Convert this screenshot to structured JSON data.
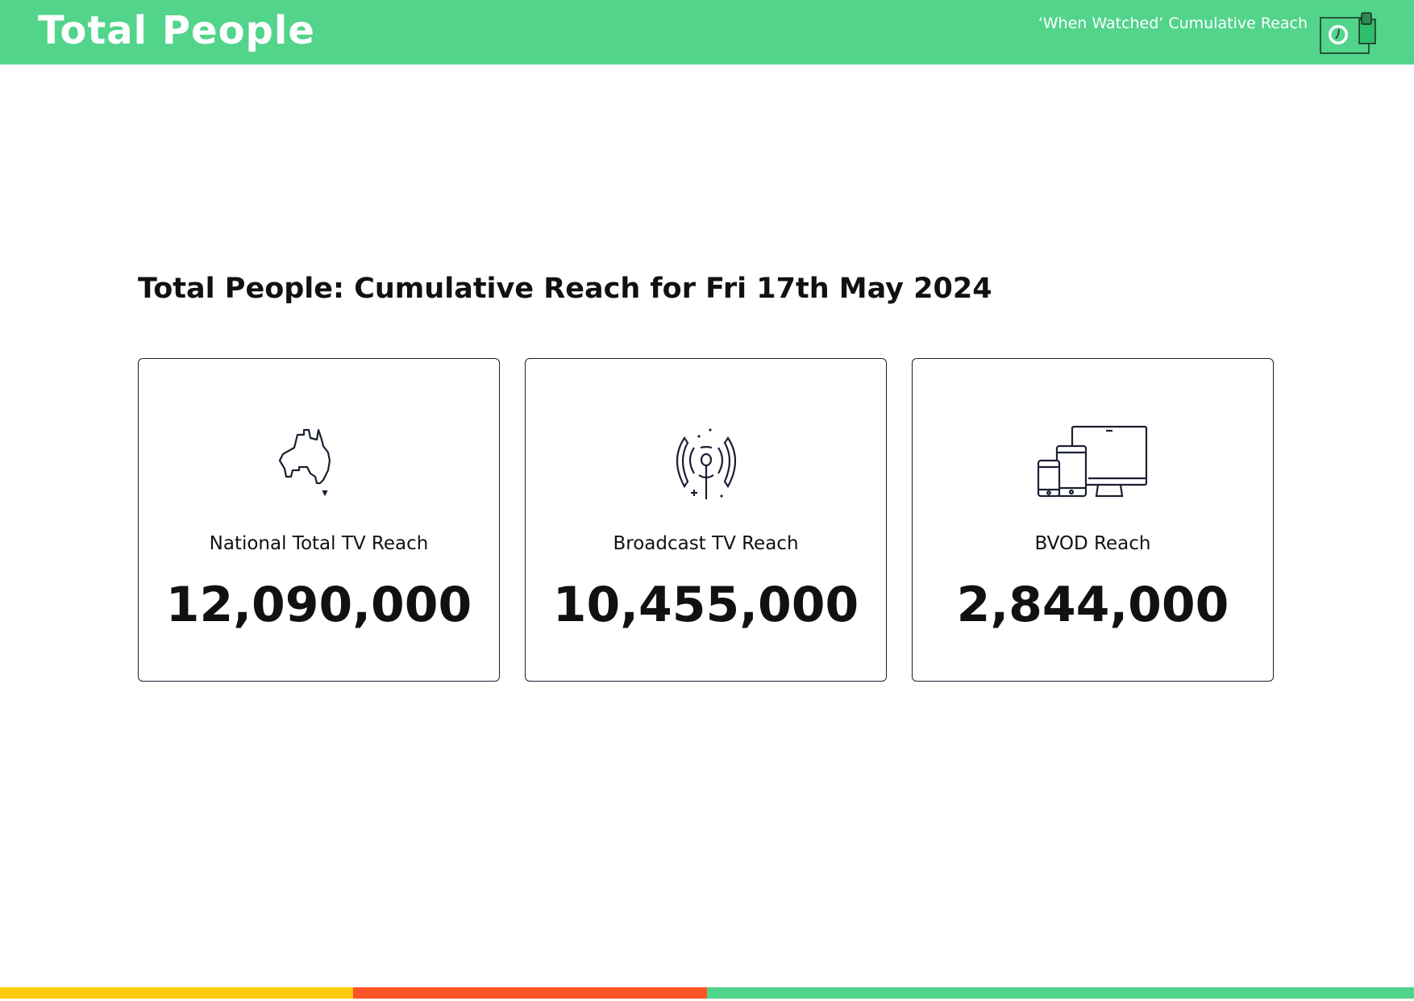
{
  "header": {
    "title": "Total People",
    "subtitle": "‘When Watched’ Cumulative Reach",
    "icon": "clock-devices-icon",
    "color": "#52D48B"
  },
  "main": {
    "heading": "Total People: Cumulative Reach for Fri 17th May 2024",
    "cards": [
      {
        "icon": "australia-map-icon",
        "label": "National Total TV Reach",
        "value": "12,090,000"
      },
      {
        "icon": "broadcast-antenna-icon",
        "label": "Broadcast TV Reach",
        "value": "10,455,000"
      },
      {
        "icon": "devices-icon",
        "label": "BVOD Reach",
        "value": "2,844,000"
      }
    ]
  },
  "footer": {
    "stripe_colors": [
      "#FCCC0A",
      "#FF5427",
      "#52D48B"
    ]
  }
}
